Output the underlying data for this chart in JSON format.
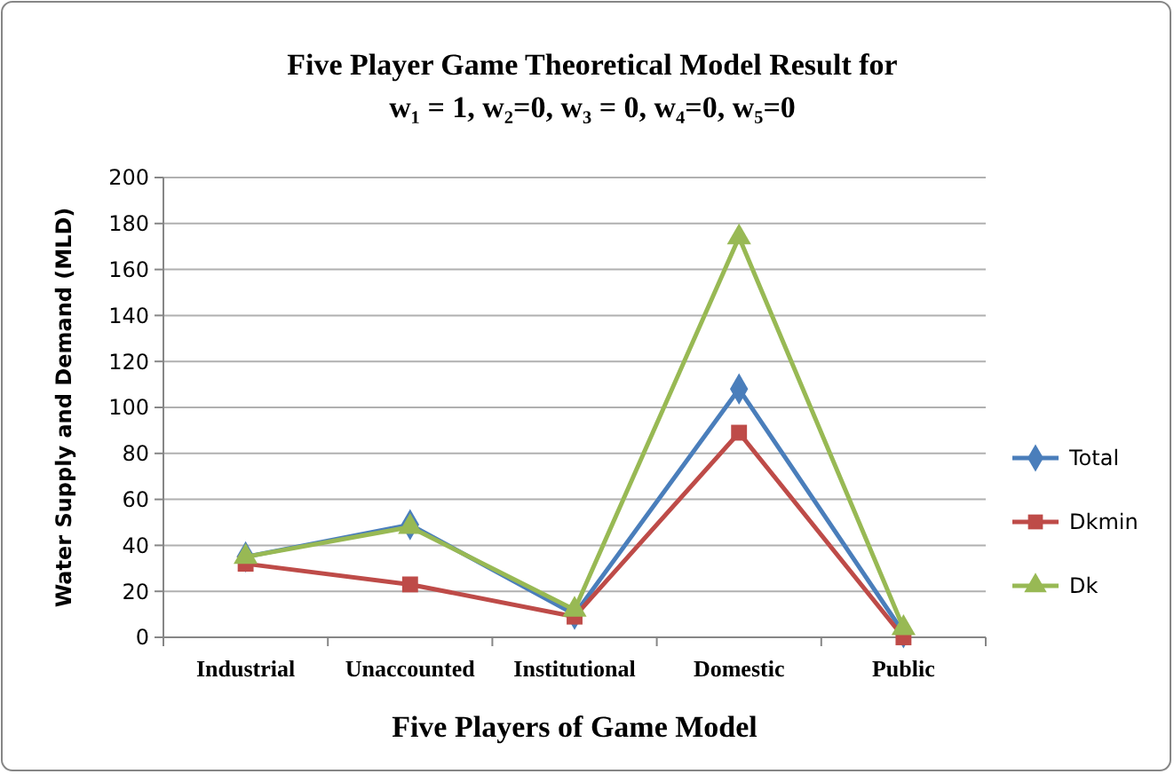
{
  "chart_data": {
    "type": "line",
    "title": "Five Player Game Theoretical Model Result for",
    "subtitle": "w₁ = 1, w₂=0, w₃ = 0, w₄=0, w₅=0",
    "xlabel": "Five Players of Game Model",
    "ylabel": "Water Supply and Demand (MLD)",
    "categories": [
      "Industrial",
      "Unaccounted",
      "Institutional",
      "Domestic",
      "Public"
    ],
    "series": [
      {
        "name": "Total",
        "color": "#4a7ebb",
        "marker": "diamond",
        "values": [
          35,
          49,
          10,
          108,
          2
        ]
      },
      {
        "name": "Dkmin",
        "color": "#be4b48",
        "marker": "square",
        "values": [
          32,
          23,
          9,
          89,
          0
        ]
      },
      {
        "name": "Dk",
        "color": "#98b954",
        "marker": "triangle",
        "values": [
          35,
          48,
          12,
          174,
          4
        ]
      }
    ],
    "ylim": [
      0,
      200
    ],
    "yticks": [
      0,
      20,
      40,
      60,
      80,
      100,
      120,
      140,
      160,
      180,
      200
    ],
    "grid": "y",
    "legend": "right"
  }
}
